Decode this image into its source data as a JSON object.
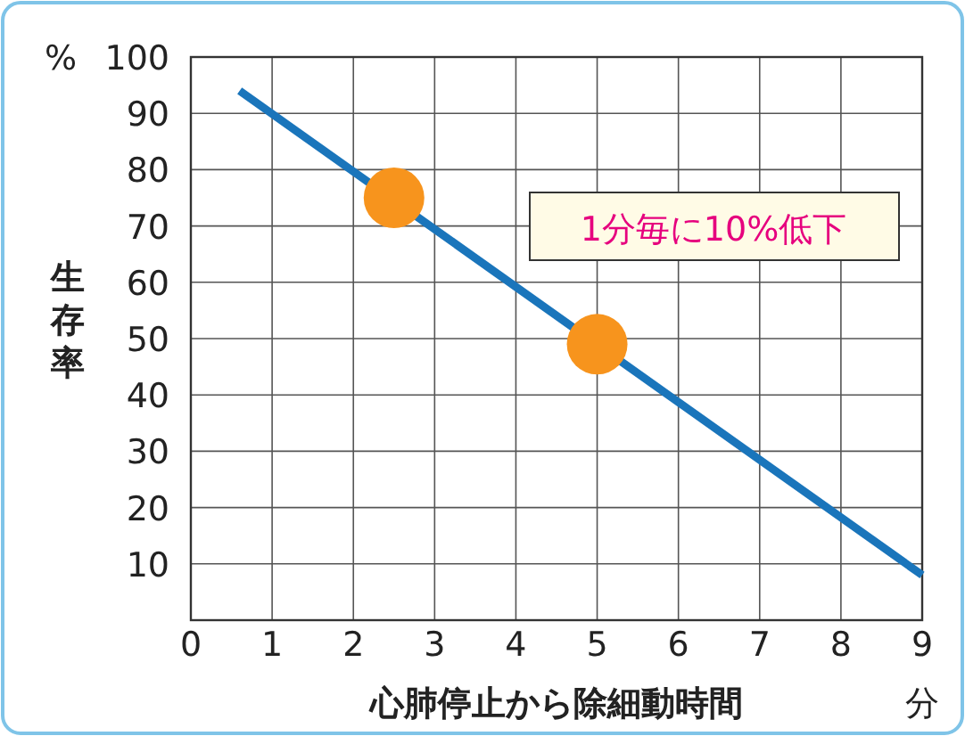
{
  "chart_data": {
    "type": "line",
    "xlabel": "心肺停止から除細動時間",
    "ylabel": "生存率",
    "xlim": [
      0,
      9
    ],
    "xticks": [
      0,
      1,
      2,
      3,
      4,
      5,
      6,
      7,
      8,
      9
    ],
    "ylim": [
      0,
      100
    ],
    "yticks": [
      {
        "value": 0,
        "label": null
      },
      10,
      20,
      30,
      40,
      50,
      60,
      70,
      80,
      90,
      100
    ],
    "grid": true,
    "series": [
      {
        "color": "#1a75bb",
        "x": [
          0.6,
          9
        ],
        "values": [
          94,
          8
        ]
      },
      {
        "type": "scatter",
        "color": "#f7941d",
        "x": [
          2.5,
          5
        ],
        "values": [
          75,
          49
        ],
        "marker": "circle"
      }
    ],
    "annotations": [
      "1分毎に10%低下",
      "%",
      "分"
    ]
  }
}
